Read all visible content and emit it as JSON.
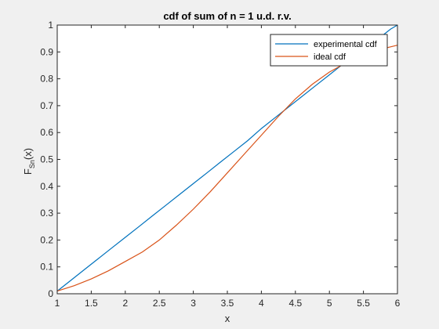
{
  "figure": {
    "background": "#f0f0f0"
  },
  "chart_data": {
    "type": "line",
    "title": "cdf of sum of n = 1 u.d. r.v.",
    "xlabel": "x",
    "ylabel": {
      "main": "F",
      "sub": "Sn",
      "tail": "(x)"
    },
    "xlim": [
      1,
      6
    ],
    "ylim": [
      0,
      1
    ],
    "xticks": [
      1,
      1.5,
      2,
      2.5,
      3,
      3.5,
      4,
      4.5,
      5,
      5.5,
      6
    ],
    "xtick_labels": [
      "1",
      "1.5",
      "2",
      "2.5",
      "3",
      "3.5",
      "4",
      "4.5",
      "5",
      "5.5",
      "6"
    ],
    "yticks": [
      0,
      0.1,
      0.2,
      0.3,
      0.4,
      0.5,
      0.6,
      0.7,
      0.8,
      0.9,
      1
    ],
    "ytick_labels": [
      "0",
      "0.1",
      "0.2",
      "0.3",
      "0.4",
      "0.5",
      "0.6",
      "0.7",
      "0.8",
      "0.9",
      "1"
    ],
    "grid": false,
    "legend_position": "top-right",
    "series": [
      {
        "name": "experimental cdf",
        "color": "#0072bd",
        "x": [
          1,
          1.2,
          1.4,
          1.6,
          1.8,
          2,
          2.2,
          2.4,
          2.6,
          2.8,
          3,
          3.2,
          3.4,
          3.6,
          3.8,
          4,
          4.2,
          4.4,
          4.6,
          4.8,
          5,
          5.2,
          5.4,
          5.6,
          5.8,
          5.9,
          6
        ],
        "y": [
          0.01,
          0.05,
          0.09,
          0.13,
          0.17,
          0.21,
          0.25,
          0.29,
          0.33,
          0.37,
          0.41,
          0.45,
          0.49,
          0.53,
          0.57,
          0.615,
          0.655,
          0.695,
          0.735,
          0.775,
          0.815,
          0.855,
          0.89,
          0.925,
          0.965,
          0.985,
          1.0
        ]
      },
      {
        "name": "ideal cdf",
        "color": "#d95319",
        "x": [
          1,
          1.25,
          1.5,
          1.75,
          2,
          2.25,
          2.5,
          2.75,
          3,
          3.25,
          3.5,
          3.75,
          4,
          4.25,
          4.5,
          4.75,
          5,
          5.25,
          5.5,
          5.75,
          6
        ],
        "y": [
          0.01,
          0.03,
          0.055,
          0.085,
          0.12,
          0.155,
          0.2,
          0.255,
          0.315,
          0.38,
          0.45,
          0.52,
          0.59,
          0.66,
          0.725,
          0.78,
          0.825,
          0.86,
          0.89,
          0.91,
          0.925
        ]
      }
    ]
  }
}
